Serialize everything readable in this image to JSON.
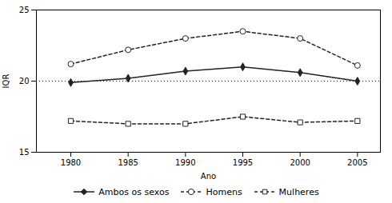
{
  "chart_data": {
    "type": "line",
    "x": [
      1980,
      1985,
      1990,
      1995,
      2000,
      2005
    ],
    "series": [
      {
        "name": "Ambos os sexos",
        "color": "#222222",
        "marker": "diamond",
        "line_style": "solid",
        "values": [
          19.9,
          20.2,
          20.7,
          21.0,
          20.6,
          20.0
        ]
      },
      {
        "name": "Homens",
        "color": "#222222",
        "marker": "circle",
        "line_style": "dashed",
        "values": [
          21.2,
          22.2,
          23.0,
          23.5,
          23.0,
          21.1
        ]
      },
      {
        "name": "Mulheres",
        "color": "#222222",
        "marker": "square",
        "line_style": "dashed",
        "values": [
          17.2,
          17.0,
          17.0,
          17.5,
          17.1,
          17.2
        ]
      }
    ],
    "xlabel": "Ano",
    "ylabel": "IQR",
    "xlim": [
      1977,
      2007
    ],
    "xticks": [
      1980,
      1985,
      1990,
      1995,
      2000,
      2005
    ],
    "ylim": [
      15,
      25
    ],
    "yticks": [
      15,
      20,
      25
    ],
    "grid": "y",
    "legend": "bottom"
  }
}
